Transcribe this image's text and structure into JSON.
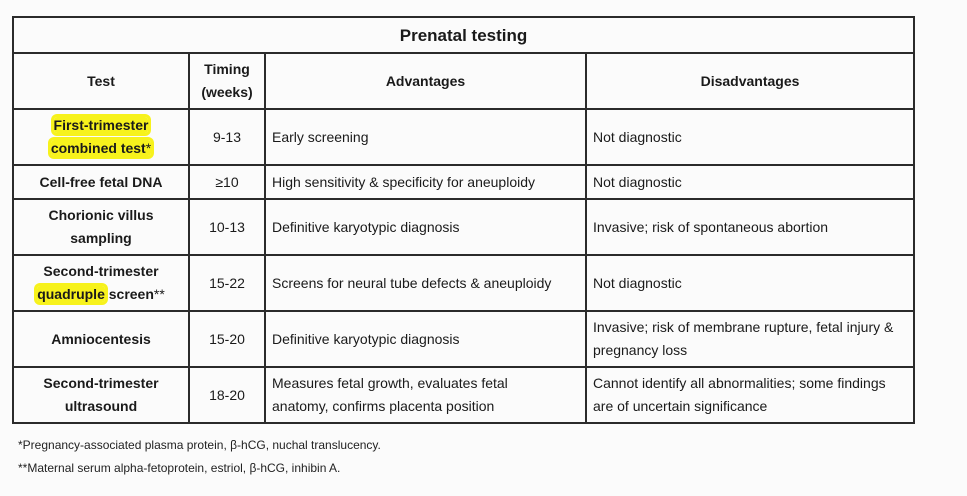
{
  "table": {
    "title": "Prenatal testing",
    "headers": {
      "test": "Test",
      "timing_line1": "Timing",
      "timing_line2": "(weeks)",
      "advantages": "Advantages",
      "disadvantages": "Disadvantages"
    },
    "rows": [
      {
        "test_line1": "First-trimester",
        "test_line2": "combined test",
        "test_mark": "*",
        "timing": "9-13",
        "advantages": "Early screening",
        "disadvantages": "Not diagnostic"
      },
      {
        "test_line1": "Cell-free fetal DNA",
        "timing": "≥10",
        "advantages": "High sensitivity & specificity for aneuploidy",
        "disadvantages": "Not diagnostic"
      },
      {
        "test_line1": "Chorionic villus",
        "test_line2": "sampling",
        "timing": "10-13",
        "advantages": "Definitive karyotypic diagnosis",
        "disadvantages": "Invasive; risk of spontaneous abortion"
      },
      {
        "test_line1": "Second-trimester",
        "test_line2_hl": "quadruple",
        "test_line2_rest": " screen",
        "test_mark": "**",
        "timing": "15-22",
        "advantages": "Screens for neural tube defects & aneuploidy",
        "disadvantages": "Not diagnostic"
      },
      {
        "test_line1": "Amniocentesis",
        "timing": "15-20",
        "advantages": "Definitive karyotypic diagnosis",
        "disadvantages_line1": "Invasive; risk of membrane rupture, fetal injury &",
        "disadvantages_line2": "pregnancy loss"
      },
      {
        "test_line1": "Second-trimester",
        "test_line2": "ultrasound",
        "timing": "18-20",
        "advantages_line1": "Measures fetal growth, evaluates fetal",
        "advantages_line2": "anatomy, confirms placenta position",
        "disadvantages_line1": "Cannot identify all abnormalities; some findings",
        "disadvantages_line2": "are of uncertain significance"
      }
    ],
    "highlight_color": "#f7f21c"
  },
  "footnotes": [
    "*Pregnancy-associated plasma protein, β-hCG, nuchal translucency.",
    "**Maternal serum alpha-fetoprotein, estriol, β-hCG, inhibin A."
  ]
}
